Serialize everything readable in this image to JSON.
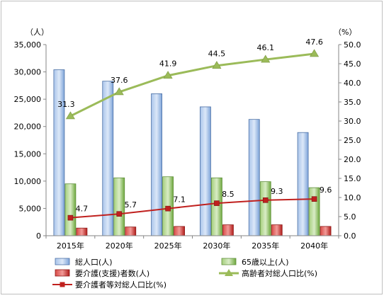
{
  "chart_data": {
    "type": "bar",
    "categories": [
      "2015年",
      "2020年",
      "2025年",
      "2030年",
      "2035年",
      "2040年"
    ],
    "y_left": {
      "unit": "（人）",
      "min": 0,
      "max": 35000,
      "step": 5000,
      "tick_labels": [
        "0",
        "5,000",
        "10,000",
        "15,000",
        "20,000",
        "25,000",
        "30,000",
        "35,000"
      ]
    },
    "y_right": {
      "unit": "（%）",
      "min": 0,
      "max": 50,
      "step": 5,
      "tick_labels": [
        "0.0",
        "5.0",
        "10.0",
        "15.0",
        "20.0",
        "25.0",
        "30.0",
        "35.0",
        "40.0",
        "45.0",
        "50.0"
      ]
    },
    "grid": false,
    "legend_position": "bottom",
    "series": [
      {
        "name": "総人口(人)",
        "kind": "bar",
        "axis": "left",
        "color": "#4f81bd",
        "values": [
          30400,
          28300,
          26000,
          23600,
          21300,
          18900
        ]
      },
      {
        "name": "65歳以上(人)",
        "kind": "bar",
        "axis": "left",
        "color": "#7fb64e",
        "values": [
          9500,
          10600,
          10800,
          10600,
          9900,
          8800
        ]
      },
      {
        "name": "要介護(支援)者数(人)",
        "kind": "bar",
        "axis": "left",
        "color": "#c0201e",
        "values": [
          1400,
          1600,
          1700,
          2000,
          2000,
          1700
        ]
      },
      {
        "name": "高齢者対総人口比(%)",
        "kind": "line",
        "marker": "triangle",
        "axis": "right",
        "color": "#9bbb59",
        "values": [
          31.3,
          37.6,
          41.9,
          44.5,
          46.1,
          47.6
        ],
        "labels": [
          "31.3",
          "37.6",
          "41.9",
          "44.5",
          "46.1",
          "47.6"
        ]
      },
      {
        "name": "要介護者等対総人口比(%)",
        "kind": "line",
        "marker": "square",
        "axis": "right",
        "color": "#c0201e",
        "values": [
          4.7,
          5.7,
          7.1,
          8.5,
          9.3,
          9.6
        ],
        "labels": [
          "4.7",
          "5.7",
          "7.1",
          "8.5",
          "9.3",
          "9.6"
        ]
      }
    ]
  }
}
